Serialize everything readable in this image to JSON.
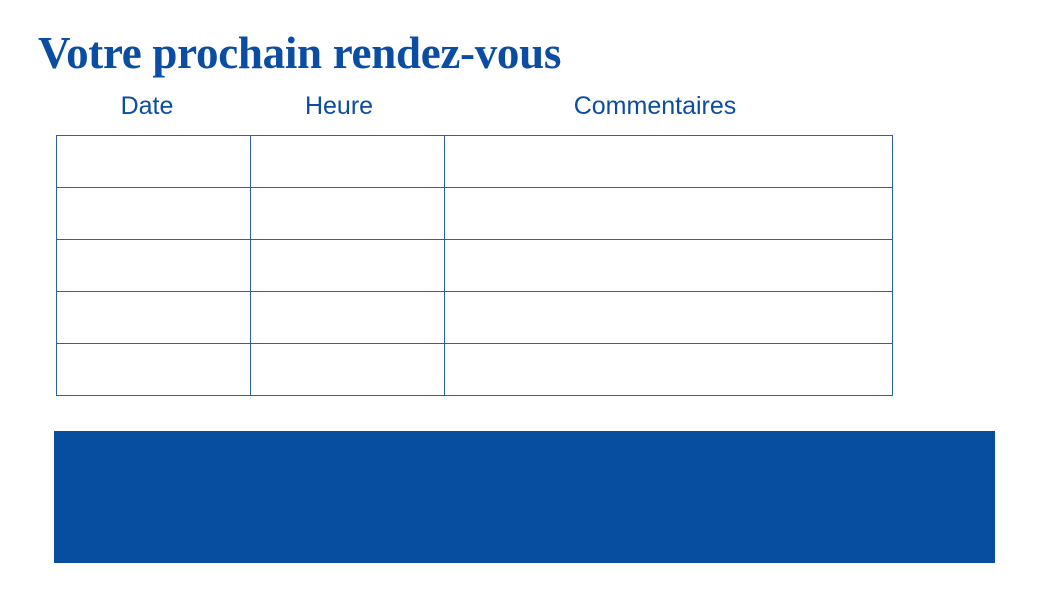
{
  "title": "Votre prochain rendez-vous",
  "table": {
    "headers": [
      "Date",
      "Heure",
      "Commentaires"
    ],
    "rows": [
      [
        "",
        "",
        ""
      ],
      [
        "",
        "",
        ""
      ],
      [
        "",
        "",
        ""
      ],
      [
        "",
        "",
        ""
      ],
      [
        "",
        "",
        ""
      ]
    ]
  },
  "colors": {
    "brand_blue": "#074da0"
  }
}
